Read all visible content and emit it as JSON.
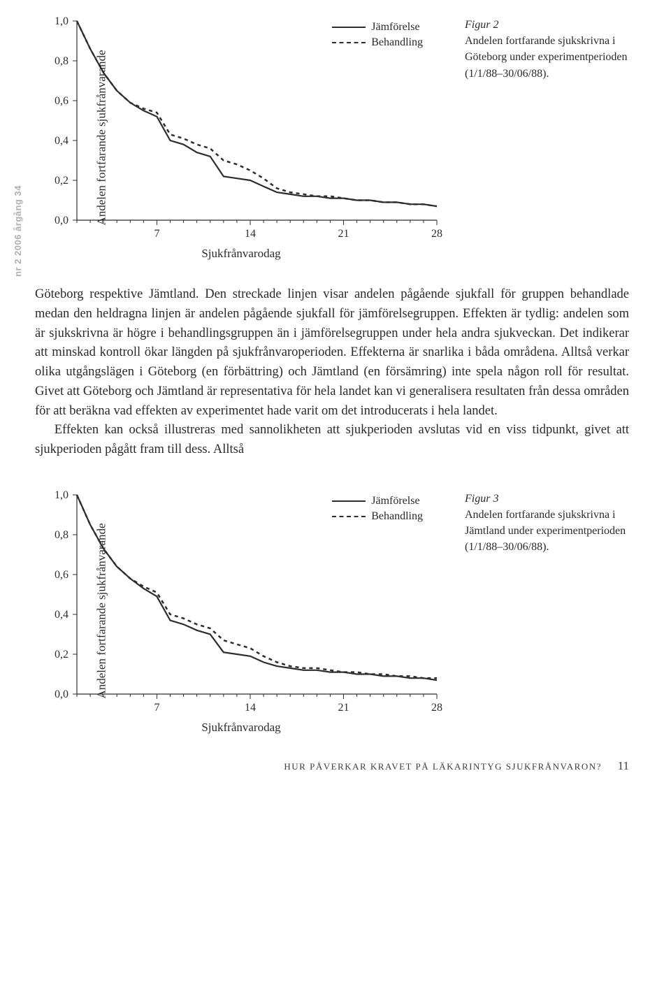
{
  "sidebar": "nr 2 2006 årgång 34",
  "figure2": {
    "y_label": "Andelen fortfarande sjukfrånvarande",
    "x_label": "Sjukfrånvarodag",
    "legend_solid": "Jämförelse",
    "legend_dashed": "Behandling",
    "caption_title": "Figur 2",
    "caption_text": "Andelen fortfarande sjukskrivna i Göteborg under experimentperioden (1/1/88–30/06/88).",
    "chart": {
      "type": "line",
      "xlim": [
        1,
        28
      ],
      "ylim": [
        0,
        1.0
      ],
      "xticks": [
        7,
        14,
        21,
        28
      ],
      "yticks": [
        0.0,
        0.2,
        0.4,
        0.6,
        0.8,
        1.0
      ],
      "ytick_labels": [
        "0,0",
        "0,2",
        "0,4",
        "0,6",
        "0,8",
        "1,0"
      ],
      "background_color": "#ffffff",
      "axis_color": "#302c2d",
      "tick_fontsize": 16,
      "label_fontsize": 17,
      "line_width_solid": 2.2,
      "line_width_dashed": 2.5,
      "dash_pattern": "5,5",
      "color_solid": "#302c2d",
      "color_dashed": "#302c2d",
      "series_solid": {
        "x": [
          1,
          2,
          3,
          4,
          5,
          6,
          7,
          8,
          9,
          10,
          11,
          12,
          13,
          14,
          15,
          16,
          17,
          18,
          19,
          20,
          21,
          22,
          23,
          24,
          25,
          26,
          27,
          28
        ],
        "y": [
          1.0,
          0.86,
          0.74,
          0.65,
          0.59,
          0.55,
          0.52,
          0.4,
          0.38,
          0.34,
          0.32,
          0.22,
          0.21,
          0.2,
          0.17,
          0.14,
          0.13,
          0.12,
          0.12,
          0.11,
          0.11,
          0.1,
          0.1,
          0.09,
          0.09,
          0.08,
          0.08,
          0.07
        ]
      },
      "series_dashed": {
        "x": [
          1,
          2,
          3,
          4,
          5,
          6,
          7,
          8,
          9,
          10,
          11,
          12,
          13,
          14,
          15,
          16,
          17,
          18,
          19,
          20,
          21,
          22,
          23,
          24,
          25,
          26,
          27,
          28
        ],
        "y": [
          1.0,
          0.86,
          0.74,
          0.65,
          0.59,
          0.56,
          0.54,
          0.43,
          0.41,
          0.38,
          0.36,
          0.3,
          0.28,
          0.25,
          0.21,
          0.16,
          0.14,
          0.13,
          0.12,
          0.12,
          0.11,
          0.1,
          0.1,
          0.09,
          0.09,
          0.08,
          0.08,
          0.07
        ]
      }
    }
  },
  "body": {
    "p1": "Göteborg respektive Jämtland. Den streckade linjen visar andelen pågående sjukfall för gruppen behandlade medan den heldragna linjen är andelen pågående sjukfall för jämförelsegruppen. Effekten är tydlig: andelen som är sjukskrivna är högre i behandlingsgruppen än i jämförelsegruppen under hela andra sjukveckan. Det indikerar att minskad kontroll ökar längden på sjukfrånvaroperioden. Effekterna är snarlika i båda områdena. Alltså verkar olika utgångslägen i Göteborg (en förbättring) och Jämtland (en försämring) inte spela någon roll för resultat. Givet att Göteborg och Jämtland är representativa för hela landet kan vi generalisera resultaten från dessa områden för att beräkna vad effekten av experimentet hade varit om det introducerats i hela landet.",
    "p2": "Effekten kan också illustreras med sannolikheten att sjukperioden avslutas vid en viss tidpunkt, givet att sjukperioden pågått fram till dess. Alltså"
  },
  "figure3": {
    "y_label": "Andelen fortfarande sjukfrånvarande",
    "x_label": "Sjukfrånvarodag",
    "legend_solid": "Jämförelse",
    "legend_dashed": "Behandling",
    "caption_title": "Figur 3",
    "caption_text": "Andelen fortfarande sjukskrivna i Jämtland under experimentperioden (1/1/88–30/06/88).",
    "chart": {
      "type": "line",
      "xlim": [
        1,
        28
      ],
      "ylim": [
        0,
        1.0
      ],
      "xticks": [
        7,
        14,
        21,
        28
      ],
      "yticks": [
        0.0,
        0.2,
        0.4,
        0.6,
        0.8,
        1.0
      ],
      "ytick_labels": [
        "0,0",
        "0,2",
        "0,4",
        "0,6",
        "0,8",
        "1,0"
      ],
      "background_color": "#ffffff",
      "axis_color": "#302c2d",
      "tick_fontsize": 16,
      "label_fontsize": 17,
      "line_width_solid": 2.2,
      "line_width_dashed": 2.5,
      "dash_pattern": "5,5",
      "color_solid": "#302c2d",
      "color_dashed": "#302c2d",
      "series_solid": {
        "x": [
          1,
          2,
          3,
          4,
          5,
          6,
          7,
          8,
          9,
          10,
          11,
          12,
          13,
          14,
          15,
          16,
          17,
          18,
          19,
          20,
          21,
          22,
          23,
          24,
          25,
          26,
          27,
          28
        ],
        "y": [
          1.0,
          0.85,
          0.73,
          0.64,
          0.58,
          0.53,
          0.49,
          0.37,
          0.35,
          0.32,
          0.3,
          0.21,
          0.2,
          0.19,
          0.16,
          0.14,
          0.13,
          0.12,
          0.12,
          0.11,
          0.11,
          0.1,
          0.1,
          0.09,
          0.09,
          0.08,
          0.08,
          0.07
        ]
      },
      "series_dashed": {
        "x": [
          1,
          2,
          3,
          4,
          5,
          6,
          7,
          8,
          9,
          10,
          11,
          12,
          13,
          14,
          15,
          16,
          17,
          18,
          19,
          20,
          21,
          22,
          23,
          24,
          25,
          26,
          27,
          28
        ],
        "y": [
          1.0,
          0.85,
          0.73,
          0.64,
          0.58,
          0.54,
          0.51,
          0.4,
          0.38,
          0.35,
          0.33,
          0.27,
          0.25,
          0.23,
          0.19,
          0.16,
          0.14,
          0.13,
          0.13,
          0.12,
          0.11,
          0.11,
          0.1,
          0.1,
          0.09,
          0.09,
          0.08,
          0.08
        ]
      }
    }
  },
  "footer": {
    "text": "HUR PÅVERKAR KRAVET PÅ LÄKARINTYG SJUKFRÅNVARON?",
    "page": "11"
  }
}
